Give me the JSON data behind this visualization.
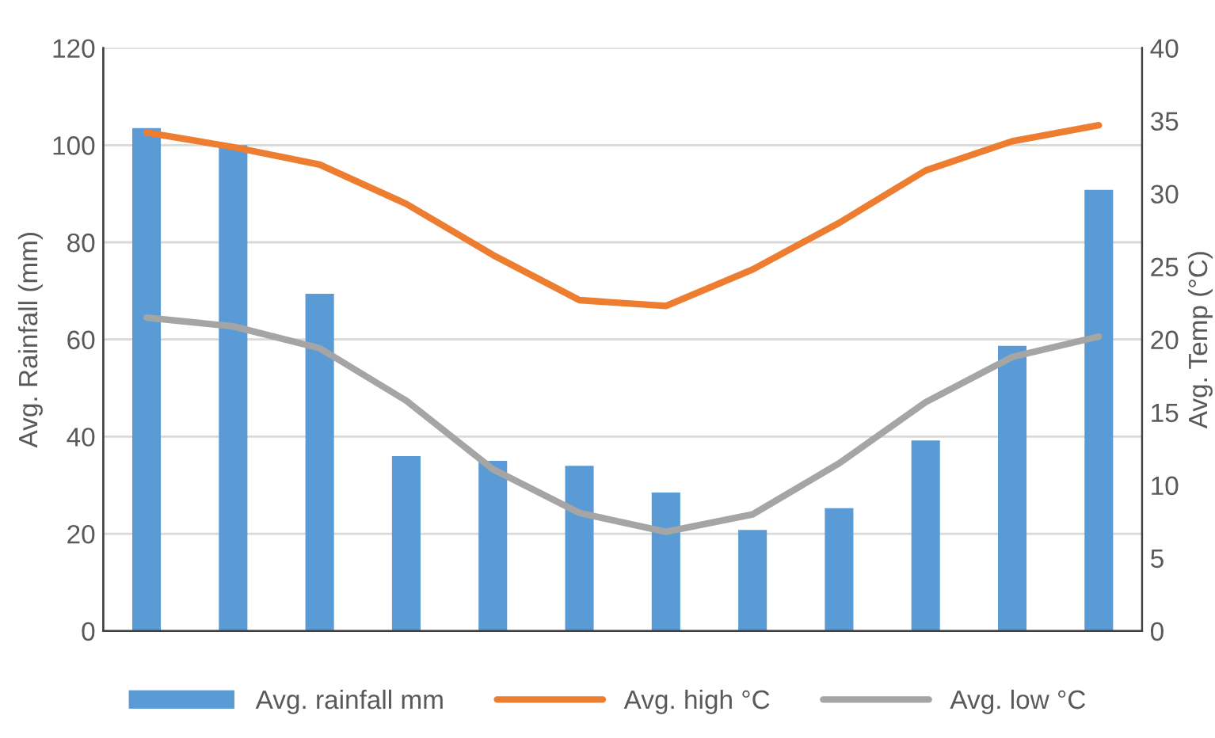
{
  "chart_data": {
    "type": "bar",
    "categories": [
      null,
      null,
      null,
      null,
      null,
      null,
      null,
      null,
      null,
      null,
      null,
      null
    ],
    "ylabel": "Avg. Rainfall (mm)",
    "y2label": "Avg. Temp (°C)",
    "ylim": [
      0,
      120
    ],
    "yticks": [
      0,
      20,
      40,
      60,
      80,
      100,
      120
    ],
    "y2lim": [
      0,
      40
    ],
    "y2ticks": [
      0,
      5,
      10,
      15,
      20,
      25,
      30,
      35,
      40
    ],
    "grid": "y",
    "legend": "bottom",
    "series": [
      {
        "name": "Avg. rainfall mm",
        "color": "#5b9bd5",
        "values": [
          103.5,
          100,
          69.4,
          36,
          35,
          34,
          28.5,
          20.8,
          25.3,
          39.2,
          58.7,
          90.8
        ]
      },
      {
        "name": "Avg. high °C",
        "type": "line",
        "axis": "y2",
        "color": "#ed7d31",
        "values": [
          34.2,
          33.2,
          32,
          29.3,
          25.8,
          22.7,
          22.3,
          24.8,
          28,
          31.6,
          33.6,
          34.7
        ]
      },
      {
        "name": "Avg. low °C",
        "type": "line",
        "axis": "y2",
        "color": "#a5a5a5",
        "values": [
          21.5,
          20.9,
          19.4,
          15.8,
          11.1,
          8.1,
          6.8,
          8.0,
          11.5,
          15.7,
          18.8,
          20.2
        ]
      }
    ]
  }
}
